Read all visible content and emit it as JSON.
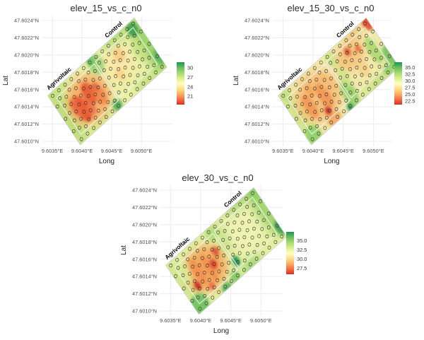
{
  "figure": {
    "background": "#ffffff"
  },
  "chart_data": [
    {
      "type": "heatmap",
      "title": "elev_15_vs_c_n0",
      "xlabel": "Long",
      "ylabel": "Lat",
      "x_ticks": {
        "values": [
          9.6035,
          9.604,
          9.6045,
          9.605
        ],
        "labels": [
          "9.6035°E",
          "9.6040°E",
          "9.6045°E",
          "9.6050°E"
        ]
      },
      "y_ticks": {
        "values": [
          47.6024,
          47.6022,
          47.602,
          47.6018,
          47.6016,
          47.6014,
          47.6012,
          47.601
        ],
        "labels": [
          "47.6024°N",
          "47.6022°N",
          "47.6020°N",
          "47.6018°N",
          "47.6016°N",
          "47.6014°N",
          "47.6012°N",
          "47.6010°N"
        ]
      },
      "xlim": [
        9.60332,
        9.60551
      ],
      "ylim": [
        47.600951,
        47.602457
      ],
      "legend": {
        "tick_labels": [
          "30",
          "27",
          "24",
          "21"
        ],
        "tick_values": [
          30,
          27,
          24,
          21
        ],
        "domain": [
          31.8,
          18.3
        ],
        "position": "right"
      },
      "grid": true,
      "base_color": "#eaf0a4",
      "surface_blobs": [
        [
          0.03,
          0.5,
          0.1,
          0.6,
          "#bede7b",
          0.95
        ],
        [
          0.13,
          0.04,
          0.1,
          0.1,
          "#c9e685",
          0.9
        ],
        [
          0.25,
          0.97,
          0.16,
          0.09,
          "#d3ea8e",
          0.9
        ],
        [
          0.28,
          0.52,
          0.21,
          0.4,
          "#f9a05c",
          0.8
        ],
        [
          0.19,
          0.57,
          0.06,
          0.24,
          "#e8532f",
          0.9
        ],
        [
          0.145,
          0.48,
          0.035,
          0.18,
          "#ef6a41",
          0.85
        ],
        [
          0.31,
          0.44,
          0.055,
          0.2,
          "#e8532f",
          0.85
        ],
        [
          0.255,
          0.62,
          0.04,
          0.16,
          "#ef6a41",
          0.8
        ],
        [
          0.385,
          0.45,
          0.028,
          0.08,
          "#c42a21",
          0.9
        ],
        [
          0.38,
          0.58,
          0.05,
          0.18,
          "#f08048",
          0.8
        ],
        [
          0.475,
          0.05,
          0.035,
          0.1,
          "#1d9150",
          0.95
        ],
        [
          0.5,
          0.15,
          0.07,
          0.18,
          "#8fd06a",
          0.75
        ],
        [
          0.46,
          0.92,
          0.045,
          0.1,
          "#4fae58",
          0.9
        ],
        [
          0.67,
          0.4,
          0.14,
          0.3,
          "#fae9a7",
          0.95
        ],
        [
          0.71,
          0.3,
          0.05,
          0.12,
          "#f8c67c",
          0.75
        ],
        [
          0.63,
          0.55,
          0.04,
          0.12,
          "#f8cf85",
          0.7
        ],
        [
          0.78,
          0.03,
          0.17,
          0.09,
          "#abda70",
          0.9
        ],
        [
          0.8,
          0.97,
          0.14,
          0.09,
          "#b7dd76",
          0.85
        ],
        [
          0.93,
          0.13,
          0.05,
          0.12,
          "#3aa04f",
          0.9
        ],
        [
          0.97,
          0.5,
          0.09,
          0.55,
          "#9cd369",
          0.95
        ],
        [
          1.0,
          0.78,
          0.05,
          0.15,
          "#5ab65c",
          0.9
        ],
        [
          0.88,
          0.45,
          0.05,
          0.2,
          "#c4e382",
          0.7
        ]
      ]
    },
    {
      "type": "heatmap",
      "title": "elev_15_30_vs_c_n0",
      "xlabel": "Long",
      "ylabel": "Lat",
      "x_ticks": {
        "values": [
          9.6035,
          9.604,
          9.6045,
          9.605
        ],
        "labels": [
          "9.6035°E",
          "9.6040°E",
          "9.6045°E",
          "9.6050°E"
        ]
      },
      "y_ticks": {
        "values": [
          47.6024,
          47.6022,
          47.602,
          47.6018,
          47.6016,
          47.6014,
          47.6012,
          47.601
        ],
        "labels": [
          "47.6024°N",
          "47.6022°N",
          "47.6020°N",
          "47.6018°N",
          "47.6016°N",
          "47.6014°N",
          "47.6012°N",
          "47.6010°N"
        ]
      },
      "xlim": [
        9.60332,
        9.6053
      ],
      "ylim": [
        47.600951,
        47.602457
      ],
      "legend": {
        "tick_labels": [
          "35.0",
          "32.5",
          "30.0",
          "27.5",
          "25.0",
          "22.5"
        ],
        "tick_values": [
          35,
          32.5,
          30,
          27.5,
          25,
          22.5
        ],
        "domain": [
          36.9,
          21.1
        ],
        "position": "right"
      },
      "grid": true,
      "base_color": "#f2e9a9",
      "surface_blobs": [
        [
          0.03,
          0.55,
          0.08,
          0.55,
          "#cfe78b",
          0.95
        ],
        [
          0.065,
          0.9,
          0.07,
          0.16,
          "#8ed066",
          0.9
        ],
        [
          0.05,
          0.08,
          0.05,
          0.12,
          "#c3e381",
          0.85
        ],
        [
          0.28,
          0.47,
          0.22,
          0.4,
          "#f7b368",
          0.75
        ],
        [
          0.175,
          0.5,
          0.045,
          0.22,
          "#f29050",
          0.8
        ],
        [
          0.33,
          0.52,
          0.05,
          0.24,
          "#f29050",
          0.8
        ],
        [
          0.25,
          0.3,
          0.04,
          0.12,
          "#f4a55c",
          0.8
        ],
        [
          0.285,
          0.76,
          0.028,
          0.08,
          "#c42a21",
          0.95
        ],
        [
          0.29,
          0.92,
          0.07,
          0.1,
          "#f4a55c",
          0.85
        ],
        [
          0.4,
          0.35,
          0.05,
          0.15,
          "#f6bc72",
          0.7
        ],
        [
          0.465,
          0.96,
          0.032,
          0.08,
          "#1d9150",
          0.95
        ],
        [
          0.52,
          0.78,
          0.06,
          0.26,
          "#92d166",
          0.85
        ],
        [
          0.56,
          0.5,
          0.04,
          0.2,
          "#c9e685",
          0.7
        ],
        [
          0.55,
          0.13,
          0.05,
          0.14,
          "#c9e685",
          0.75
        ],
        [
          0.7,
          0.3,
          0.15,
          0.22,
          "#f6b569",
          0.7
        ],
        [
          0.705,
          0.22,
          0.025,
          0.07,
          "#dc442c",
          0.9
        ],
        [
          0.795,
          0.3,
          0.022,
          0.06,
          "#e2562f",
          0.85
        ],
        [
          0.84,
          0.05,
          0.1,
          0.08,
          "#f5b76c",
          0.7
        ],
        [
          0.735,
          0.6,
          0.05,
          0.15,
          "#f8cd82",
          0.7
        ],
        [
          0.985,
          0.07,
          0.045,
          0.14,
          "#e2512e",
          0.95
        ],
        [
          0.9,
          0.5,
          0.05,
          0.25,
          "#a2d66b",
          0.8
        ],
        [
          0.99,
          0.75,
          0.05,
          0.2,
          "#74c25f",
          0.9
        ],
        [
          0.78,
          0.97,
          0.1,
          0.08,
          "#a2d66b",
          0.85
        ],
        [
          0.92,
          0.9,
          0.06,
          0.1,
          "#8ed066",
          0.85
        ],
        [
          0.65,
          0.92,
          0.06,
          0.08,
          "#d3ea8e",
          0.8
        ]
      ]
    },
    {
      "type": "heatmap",
      "title": "elev_30_vs_c_n0",
      "xlabel": "Long",
      "ylabel": "Lat",
      "x_ticks": {
        "values": [
          9.6035,
          9.604,
          9.6045,
          9.605
        ],
        "labels": [
          "9.6035°E",
          "9.6040°E",
          "9.6045°E",
          "9.6050°E"
        ]
      },
      "y_ticks": {
        "values": [
          47.6024,
          47.6022,
          47.602,
          47.6018,
          47.6016,
          47.6014,
          47.6012,
          47.601
        ],
        "labels": [
          "47.6024°N",
          "47.6022°N",
          "47.6020°N",
          "47.6018°N",
          "47.6016°N",
          "47.6014°N",
          "47.6012°N",
          "47.6010°N"
        ]
      },
      "xlim": [
        9.60332,
        9.60536
      ],
      "ylim": [
        47.600951,
        47.602457
      ],
      "legend": {
        "tick_labels": [
          "35.0",
          "32.5",
          "30.0",
          "27.5"
        ],
        "tick_values": [
          35,
          32.5,
          30,
          27.5
        ],
        "domain": [
          37.4,
          25.8
        ],
        "position": "right"
      },
      "grid": true,
      "base_color": "#e3efa1",
      "surface_blobs": [
        [
          0.72,
          0.45,
          0.17,
          0.36,
          "#f0f3b3",
          0.9
        ],
        [
          0.97,
          0.4,
          0.08,
          0.5,
          "#9cd369",
          0.9
        ],
        [
          1.0,
          0.8,
          0.045,
          0.14,
          "#3aa04f",
          0.9
        ],
        [
          0.97,
          0.07,
          0.05,
          0.12,
          "#8ed066",
          0.85
        ],
        [
          0.8,
          0.02,
          0.16,
          0.08,
          "#9cd369",
          0.85
        ],
        [
          0.62,
          0.96,
          0.1,
          0.09,
          "#8ed066",
          0.85
        ],
        [
          0.52,
          0.74,
          0.034,
          0.09,
          "#1d9150",
          0.95
        ],
        [
          0.53,
          0.3,
          0.05,
          0.3,
          "#b7dd76",
          0.7
        ],
        [
          0.47,
          0.1,
          0.05,
          0.12,
          "#a8d86e",
          0.7
        ],
        [
          0.27,
          0.5,
          0.2,
          0.37,
          "#f7a55d",
          0.9
        ],
        [
          0.2,
          0.45,
          0.04,
          0.26,
          "#f28e4e",
          0.85
        ],
        [
          0.295,
          0.52,
          0.04,
          0.26,
          "#f28e4e",
          0.8
        ],
        [
          0.13,
          0.62,
          0.028,
          0.08,
          "#c42a21",
          0.95
        ],
        [
          0.345,
          0.52,
          0.033,
          0.09,
          "#dc442c",
          0.9
        ],
        [
          0.42,
          0.38,
          0.028,
          0.08,
          "#dc442c",
          0.85
        ],
        [
          0.23,
          0.78,
          0.028,
          0.06,
          "#e8603a",
          0.85
        ],
        [
          0.33,
          0.97,
          0.05,
          0.08,
          "#5ab65c",
          0.9
        ],
        [
          0.06,
          0.88,
          0.08,
          0.18,
          "#6ec05e",
          0.9
        ],
        [
          0.44,
          0.93,
          0.045,
          0.1,
          "#7ec661",
          0.85
        ],
        [
          0.02,
          0.4,
          0.06,
          0.5,
          "#cfe78b",
          0.9
        ],
        [
          0.09,
          0.3,
          0.05,
          0.2,
          "#d8ec93",
          0.8
        ]
      ]
    }
  ],
  "field": {
    "corners_lonlat": {
      "west": [
        9.60342,
        47.60153
      ],
      "north": [
        9.60488,
        47.60243
      ],
      "south": [
        9.60397,
        47.60096
      ]
    },
    "regions": [
      {
        "label": "Agrivoltaic",
        "t_range": [
          0.055,
          0.49
        ],
        "s_range": [
          0.13,
          0.87
        ],
        "label_t": 0.17
      },
      {
        "label": "Control",
        "t_range": [
          0.51,
          0.945
        ],
        "s_range": [
          0.11,
          0.85
        ],
        "label_t": 0.8
      }
    ],
    "sample_points_spec": {
      "edge_points_per_side": 14,
      "edge_t_range": [
        0.035,
        0.965
      ],
      "edge_inset_s": [
        0.06,
        0.94
      ],
      "end_t": [
        0.018,
        0.982
      ],
      "end_s": [
        0.25,
        0.5,
        0.75
      ],
      "block_rows": 5,
      "block_cols": 8,
      "row_s_start": 0.2,
      "row_s_step": 0.15,
      "zigzag_s": 0.028
    }
  },
  "palette": {
    "gradient_green_to_red": [
      "#1a9850",
      "#66bd63",
      "#a6d96a",
      "#d9ef8b",
      "#ffffbf",
      "#fee08b",
      "#fdae61",
      "#f46d43",
      "#d73027"
    ],
    "grid_color": "#ececec",
    "tick_label_color": "#4d4d4d",
    "axis_title_color": "#1f1f1f",
    "title_color": "#2b2b2b",
    "point_stroke": "#2e2e2e",
    "region_outline": "#f2f2f2",
    "field_outline": "#cfcfcf"
  }
}
